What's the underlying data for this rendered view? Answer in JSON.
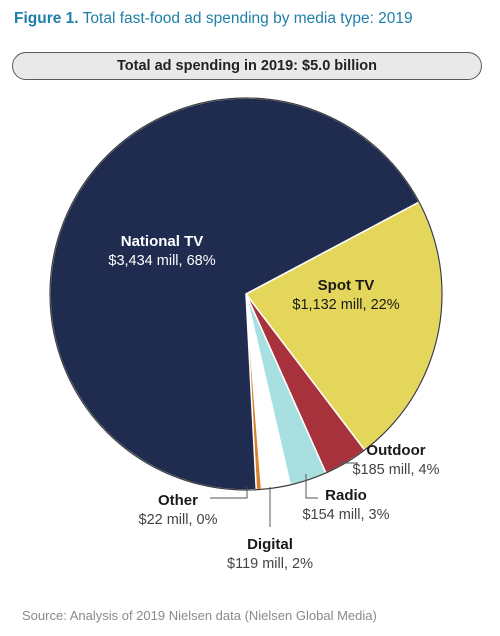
{
  "figure": {
    "number_label": "Figure 1.",
    "caption": "Total fast-food ad spending by media type: 2019"
  },
  "banner": "Total ad spending in 2019: $5.0 billion",
  "source": "Source: Analysis of 2019 Nielsen data (Nielsen Global Media)",
  "chart_data": {
    "type": "pie",
    "title": "Total ad spending in 2019: $5.0 billion",
    "total": "$5.0 billion",
    "unit": "mill",
    "slices": [
      {
        "name": "National TV",
        "value": 3434,
        "percent": 68,
        "value_label": "$3,434 mill, 68%",
        "color": "#1f2c4f"
      },
      {
        "name": "Spot TV",
        "value": 1132,
        "percent": 22,
        "value_label": "$1,132 mill, 22%",
        "color": "#e3d65a"
      },
      {
        "name": "Outdoor",
        "value": 185,
        "percent": 4,
        "value_label": "$185 mill, 4%",
        "color": "#a8323c"
      },
      {
        "name": "Radio",
        "value": 154,
        "percent": 3,
        "value_label": "$154 mill, 3%",
        "color": "#a8dfe0"
      },
      {
        "name": "Digital",
        "value": 119,
        "percent": 2,
        "value_label": "$119 mill, 2%",
        "color": "#ffffff"
      },
      {
        "name": "Other",
        "value": 22,
        "percent": 0,
        "value_label": "$22 mill, 0%",
        "color": "#d9822b"
      }
    ]
  }
}
